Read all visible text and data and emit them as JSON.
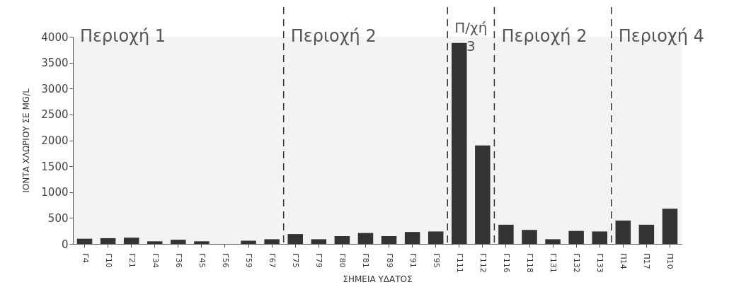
{
  "chart_data": {
    "type": "bar",
    "xlabel": "ΣΗΜΕΙΑ ΥΔΑΤΟΣ",
    "ylabel": "ΙΟΝΤΑ ΧΛΩΡΙΟΥ ΣΕ MG/L",
    "categories": [
      "Γ4",
      "Γ10",
      "Γ21",
      "Γ34",
      "Γ36",
      "Γ45",
      "Γ56",
      "Γ59",
      "Γ67",
      "Γ75",
      "Γ79",
      "Γ80",
      "Γ81",
      "Γ89",
      "Γ91",
      "Γ95",
      "Γ111",
      "Γ112",
      "Γ116",
      "Γ118",
      "Γ131",
      "Γ132",
      "Γ133",
      "Π14",
      "Π17",
      "Π10"
    ],
    "values": [
      100,
      110,
      120,
      50,
      80,
      50,
      0,
      60,
      90,
      190,
      90,
      150,
      210,
      150,
      230,
      240,
      3880,
      1900,
      370,
      270,
      90,
      250,
      240,
      450,
      370,
      680
    ],
    "color": "#333333",
    "ylim": [
      0,
      4000
    ],
    "yticks": [
      0,
      500,
      1000,
      1500,
      2000,
      2500,
      3000,
      3500,
      4000
    ],
    "bands": [
      {
        "axis": "x",
        "from": "Γ4",
        "to": "Γ67",
        "label": "Περιοχή 1"
      },
      {
        "axis": "x",
        "from": "Γ75",
        "to": "Γ95",
        "label": "Περιοχή 2"
      },
      {
        "axis": "x",
        "from": "Γ111",
        "to": "Γ112",
        "label": "Π/χή 3"
      },
      {
        "axis": "x",
        "from": "Γ116",
        "to": "Γ133",
        "label": "Περιοχή 2"
      },
      {
        "axis": "x",
        "from": "Π14",
        "to": "Π10",
        "label": "Περιοχή 4"
      }
    ],
    "grid": false
  }
}
